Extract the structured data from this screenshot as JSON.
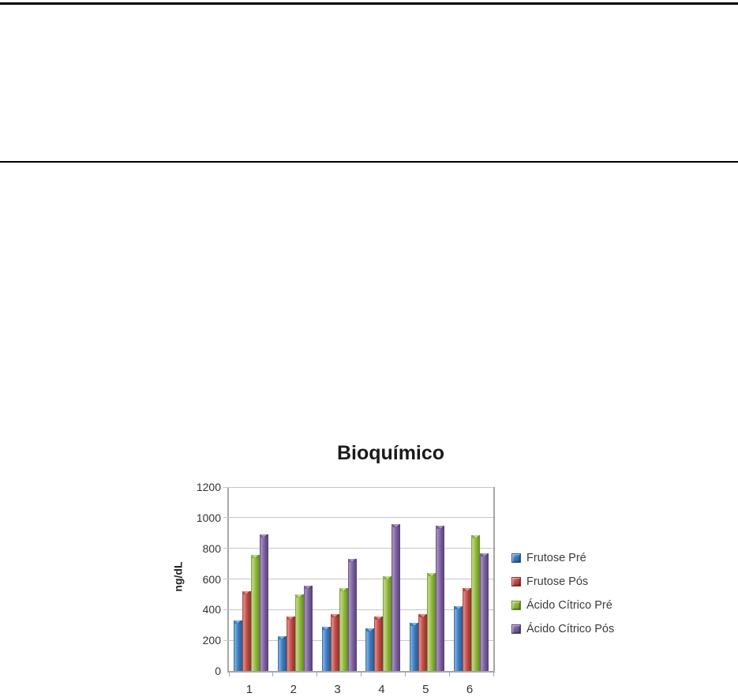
{
  "chart_data": {
    "type": "bar",
    "title": "Bioquímico",
    "ylabel": "ng/dL",
    "xlabel": "",
    "categories": [
      "1",
      "2",
      "3",
      "4",
      "5",
      "6"
    ],
    "series": [
      {
        "name": "Frutose Pré",
        "color": "#3b7abf",
        "color_light": "#7fb2e0",
        "color_dark": "#2a5a8e",
        "values": [
          330,
          225,
          290,
          280,
          315,
          420
        ]
      },
      {
        "name": "Frutose Pós",
        "color": "#bf4b47",
        "color_light": "#e08e8a",
        "color_dark": "#8e2f2c",
        "values": [
          520,
          355,
          370,
          355,
          370,
          540
        ]
      },
      {
        "name": "Ácido Cítrico Pré",
        "color": "#8fb83e",
        "color_light": "#c2d98a",
        "color_dark": "#678a24",
        "values": [
          755,
          500,
          540,
          620,
          640,
          885
        ]
      },
      {
        "name": "Ácido Cítrico Pós",
        "color": "#7a609e",
        "color_light": "#a893c4",
        "color_dark": "#55406f",
        "values": [
          890,
          555,
          730,
          960,
          950,
          765
        ]
      }
    ],
    "ylim": [
      0,
      1200
    ],
    "yticks": [
      0,
      200,
      400,
      600,
      800,
      1000,
      1200
    ],
    "grid": true,
    "legend_position": "right",
    "colors": {
      "gridline": "#c6c6c6",
      "axis": "#a6a6a6",
      "tick_text": "#333333",
      "title_text": "#1a1a1a"
    }
  }
}
